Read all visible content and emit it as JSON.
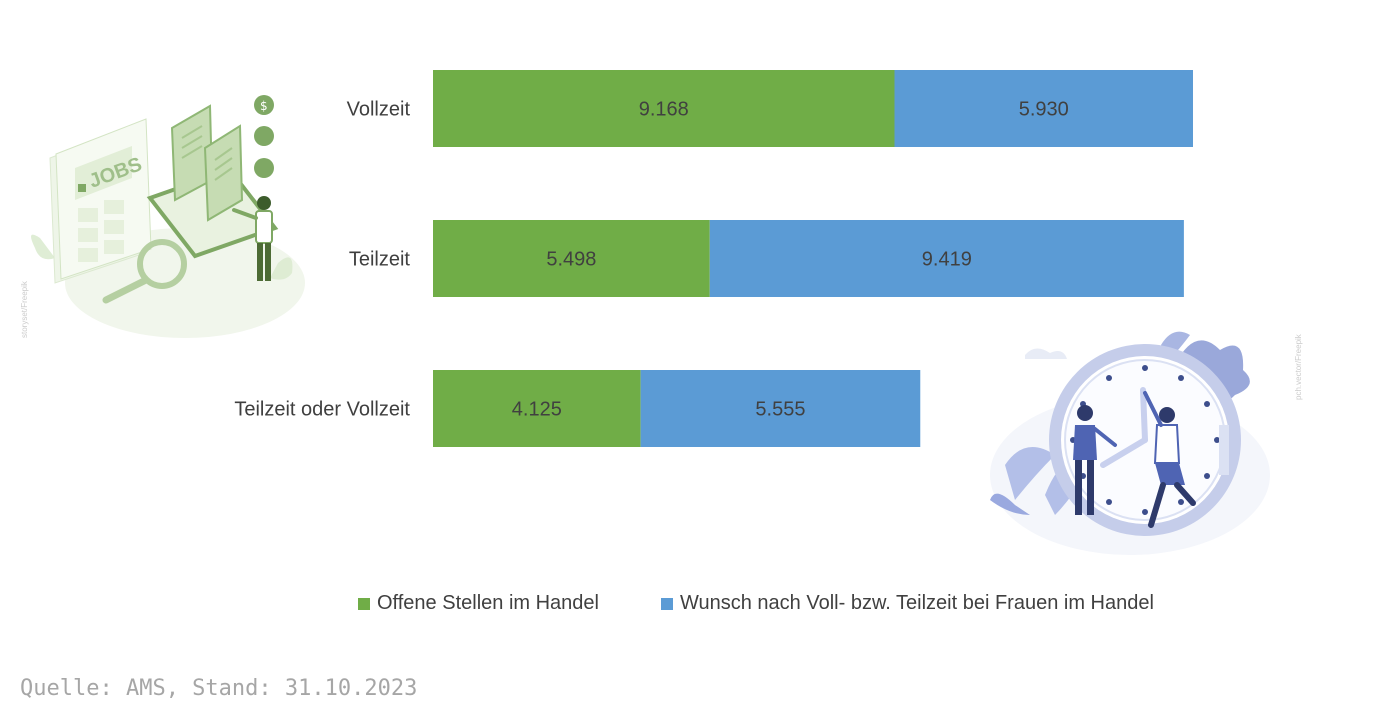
{
  "chart_data": {
    "type": "bar",
    "orientation": "horizontal",
    "stacked": true,
    "categories": [
      "Vollzeit",
      "Teilzeit",
      "Teilzeit oder Vollzeit"
    ],
    "series": [
      {
        "name": "Offene Stellen im Handel",
        "values": [
          9168,
          5498,
          4125
        ],
        "labels": [
          "9.168",
          "5.498",
          "4.125"
        ]
      },
      {
        "name": "Wunsch nach Voll- bzw. Teilzeit bei Frauen im Handel",
        "values": [
          5930,
          9419,
          5555
        ],
        "labels": [
          "5.930",
          "9.419",
          "5.555"
        ]
      }
    ],
    "colors": [
      "#70ad47",
      "#5b9bd5"
    ],
    "grid": false,
    "legend_position": "bottom"
  },
  "source": "Quelle: AMS, Stand: 31.10.2023",
  "illustrations": [
    {
      "name": "jobs-illustration",
      "text": "JOBS",
      "credit": "storyset/Freepik"
    },
    {
      "name": "clock-illustration",
      "credit": "pch.vector/Freepik"
    }
  ]
}
